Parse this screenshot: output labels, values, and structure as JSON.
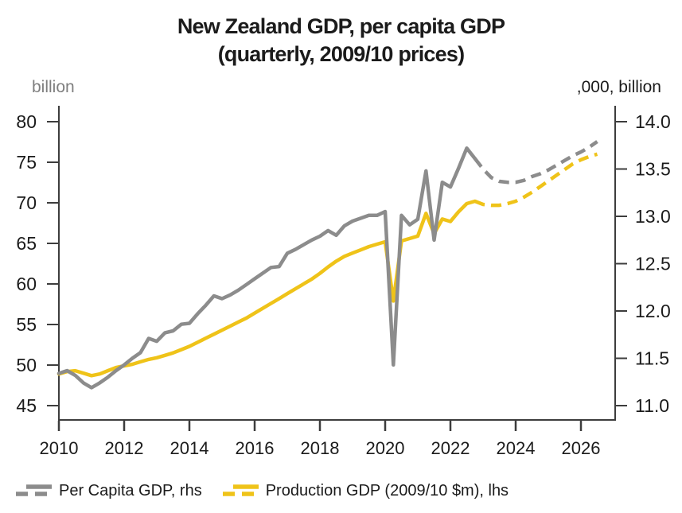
{
  "title": {
    "line1": "New Zealand GDP, per capita GDP",
    "line2": "(quarterly, 2009/10 prices)"
  },
  "chart_data": {
    "type": "line",
    "title": "New Zealand GDP, per capita GDP (quarterly, 2009/10 prices)",
    "x_frequency": "quarterly",
    "axes": {
      "left": {
        "unit": "billion",
        "ticks": [
          80,
          75,
          70,
          65,
          60,
          55,
          50,
          45
        ],
        "range": [
          45,
          80
        ]
      },
      "right": {
        "unit": ",000, billion",
        "ticks": [
          "14.0",
          "13.5",
          "13.0",
          "12.5",
          "12.0",
          "11.5",
          "11.0"
        ],
        "tick_values": [
          14.0,
          13.5,
          13.0,
          12.5,
          12.0,
          11.5,
          11.0
        ],
        "range": [
          11.0,
          14.0
        ]
      },
      "x": {
        "ticks": [
          2010,
          2012,
          2014,
          2016,
          2018,
          2020,
          2022,
          2024,
          2026
        ],
        "range": [
          2010,
          2027
        ]
      }
    },
    "grid": false,
    "legend_position": "bottom",
    "colors": {
      "per_capita": "#8C8C8C",
      "production": "#EFC319",
      "axis": "#3d3d3d"
    },
    "legend": {
      "items": [
        {
          "label": "Per Capita GDP, rhs",
          "color": "#8C8C8C"
        },
        {
          "label": "Production GDP (2009/10 $m), lhs",
          "color": "#EFC319"
        }
      ]
    },
    "series": [
      {
        "name": "Per Capita GDP, rhs",
        "axis": "right",
        "color": "#8C8C8C",
        "unit": ",000",
        "solid": {
          "start": 2010.0,
          "step": 0.25,
          "values": [
            11.34,
            11.37,
            11.32,
            11.24,
            11.19,
            11.24,
            11.3,
            11.37,
            11.43,
            11.5,
            11.56,
            11.71,
            11.68,
            11.77,
            11.79,
            11.86,
            11.87,
            11.97,
            12.06,
            12.16,
            12.13,
            12.17,
            12.22,
            12.28,
            12.34,
            12.4,
            12.46,
            12.47,
            12.61,
            12.65,
            12.7,
            12.75,
            12.79,
            12.85,
            12.8,
            12.9,
            12.95,
            12.98,
            13.01,
            13.01,
            13.05,
            11.43,
            13.01,
            12.91,
            12.97,
            13.48,
            12.75,
            13.36,
            13.31,
            13.51,
            13.72,
            13.61
          ]
        },
        "forecast": {
          "start": 2022.75,
          "step": 0.25,
          "values": [
            13.61,
            13.5,
            13.41,
            13.37,
            13.36,
            13.36,
            13.38,
            13.42,
            13.45,
            13.49,
            13.54,
            13.59,
            13.64,
            13.68,
            13.73,
            13.79
          ]
        }
      },
      {
        "name": "Production GDP (2009/10 $m), lhs",
        "axis": "left",
        "color": "#EFC319",
        "unit": "billion",
        "solid": {
          "start": 2010.0,
          "step": 0.25,
          "values": [
            48.9,
            49.2,
            49.3,
            49.0,
            48.7,
            48.9,
            49.3,
            49.7,
            49.9,
            50.1,
            50.4,
            50.7,
            50.9,
            51.2,
            51.5,
            51.9,
            52.3,
            52.8,
            53.3,
            53.8,
            54.3,
            54.8,
            55.3,
            55.8,
            56.4,
            57.0,
            57.6,
            58.2,
            58.8,
            59.4,
            60.0,
            60.6,
            61.3,
            62.1,
            62.8,
            63.4,
            63.8,
            64.2,
            64.6,
            64.9,
            65.2,
            57.9,
            65.3,
            65.6,
            65.9,
            68.7,
            66.2,
            68.0,
            67.7,
            68.9,
            69.9,
            70.2
          ]
        },
        "forecast": {
          "start": 2022.75,
          "step": 0.25,
          "values": [
            70.2,
            69.8,
            69.7,
            69.7,
            69.9,
            70.2,
            70.7,
            71.3,
            72.0,
            72.7,
            73.4,
            74.1,
            74.8,
            75.3,
            75.7,
            76.0
          ]
        }
      }
    ]
  }
}
